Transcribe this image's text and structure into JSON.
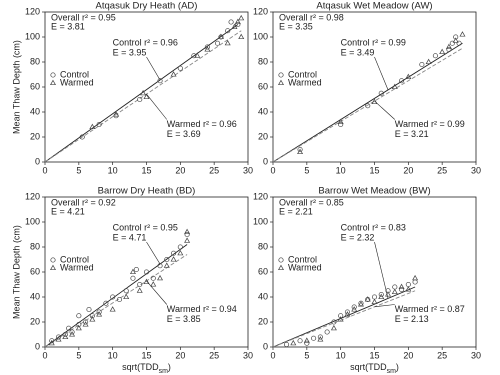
{
  "chart_data": [
    {
      "type": "scatter",
      "title": "Atqasuk Dry Heath (AD)",
      "ylabel": "Mean Thaw Depth (cm)",
      "xlim": [
        0,
        30
      ],
      "ylim": [
        0,
        120
      ],
      "xticks": [
        0,
        5,
        10,
        15,
        20,
        25,
        30
      ],
      "yticks": [
        0,
        20,
        40,
        60,
        80,
        100,
        120
      ],
      "series": [
        {
          "name": "Control",
          "marker": "circle",
          "color": "#444444",
          "x": [
            5.5,
            8,
            10.5,
            14,
            17,
            20,
            22,
            24,
            25.5,
            26,
            27,
            27.5,
            28.5
          ],
          "values": [
            20,
            30,
            37,
            50,
            65,
            75,
            85,
            92,
            95,
            100,
            105,
            112,
            110
          ]
        },
        {
          "name": "Warmed",
          "marker": "triangle",
          "color": "#444444",
          "x": [
            7,
            10.5,
            14.5,
            15,
            19,
            22.5,
            24,
            26,
            27,
            28,
            28.5,
            29,
            29
          ],
          "values": [
            28,
            38,
            55,
            52,
            70,
            85,
            90,
            100,
            95,
            108,
            112,
            115,
            100
          ]
        }
      ],
      "lines": [
        {
          "color": "#222222",
          "dashed": false,
          "x": [
            0,
            28.5
          ],
          "values": [
            0,
            110
          ]
        },
        {
          "color": "#888888",
          "dashed": true,
          "x": [
            0,
            29
          ],
          "values": [
            0,
            105
          ]
        }
      ],
      "annotations": [
        "Overall r² = 0.95",
        "E = 3.81",
        "Control r² = 0.96",
        "E = 3.95",
        "Warmed r² = 0.96",
        "E = 3.69"
      ]
    },
    {
      "type": "scatter",
      "title": "Atqasuk Wet Meadow (AW)",
      "xlim": [
        0,
        30
      ],
      "ylim": [
        0,
        120
      ],
      "xticks": [
        0,
        5,
        10,
        15,
        20,
        25,
        30
      ],
      "yticks": [
        0,
        20,
        40,
        60,
        80,
        100,
        120
      ],
      "series": [
        {
          "name": "Control",
          "marker": "circle",
          "color": "#444444",
          "x": [
            4,
            10,
            14,
            16,
            19,
            22,
            24,
            26,
            26.5,
            27,
            27.5
          ],
          "values": [
            10,
            30,
            45,
            55,
            65,
            78,
            85,
            90,
            95,
            100,
            95
          ]
        },
        {
          "name": "Warmed",
          "marker": "triangle",
          "color": "#444444",
          "x": [
            4,
            10,
            15,
            18,
            20,
            23,
            25,
            26,
            27,
            28
          ],
          "values": [
            8,
            32,
            48,
            60,
            68,
            80,
            88,
            92,
            97,
            102
          ]
        }
      ],
      "lines": [
        {
          "color": "#222222",
          "dashed": false,
          "x": [
            0,
            28
          ],
          "values": [
            0,
            95
          ]
        },
        {
          "color": "#888888",
          "dashed": true,
          "x": [
            0,
            28
          ],
          "values": [
            0,
            91
          ]
        }
      ],
      "annotations": [
        "Overall r² = 0.98",
        "E = 3.35",
        "Control r² = 0.99",
        "E = 3.49",
        "Warmed r² = 0.99",
        "E = 3.21"
      ]
    },
    {
      "type": "scatter",
      "title": "Barrow Dry Heath (BD)",
      "ylabel": "Mean Thaw Depth (cm)",
      "xlabel_main": "sqrt(TDD",
      "xlabel_sub": "sm",
      "xlabel_end": ")",
      "xlim": [
        0,
        30
      ],
      "ylim": [
        0,
        120
      ],
      "xticks": [
        0,
        5,
        10,
        15,
        20,
        25,
        30
      ],
      "yticks": [
        0,
        20,
        40,
        60,
        80,
        100,
        120
      ],
      "series": [
        {
          "name": "Control",
          "marker": "circle",
          "color": "#444444",
          "x": [
            1,
            2,
            3,
            3.5,
            4,
            5,
            5,
            6,
            6.5,
            7,
            8,
            9,
            10,
            11,
            12,
            13,
            13.5,
            14,
            15,
            16,
            17,
            18,
            19,
            20,
            21
          ],
          "values": [
            5,
            8,
            10,
            15,
            12,
            18,
            25,
            20,
            30,
            25,
            28,
            35,
            40,
            38,
            45,
            55,
            62,
            50,
            60,
            55,
            65,
            70,
            75,
            80,
            90
          ]
        },
        {
          "name": "Warmed",
          "marker": "triangle",
          "color": "#444444",
          "x": [
            1,
            2,
            3,
            4,
            5,
            6,
            7,
            8,
            10,
            12,
            13,
            14,
            15,
            16,
            17,
            18,
            19,
            20,
            21,
            21
          ],
          "values": [
            3,
            6,
            8,
            10,
            15,
            18,
            22,
            26,
            30,
            40,
            60,
            45,
            52,
            50,
            55,
            65,
            70,
            75,
            85,
            92
          ]
        }
      ],
      "lines": [
        {
          "color": "#222222",
          "dashed": false,
          "x": [
            0,
            21
          ],
          "values": [
            0,
            82
          ]
        },
        {
          "color": "#888888",
          "dashed": true,
          "x": [
            0,
            21
          ],
          "values": [
            0,
            74
          ]
        }
      ],
      "annotations": [
        "Overall r² = 0.92",
        "E = 4.21",
        "Control r² = 0.95",
        "E = 4.71",
        "Warmed r² = 0.94",
        "E = 3.85"
      ]
    },
    {
      "type": "scatter",
      "title": "Barrow Wet Meadow (BW)",
      "xlabel_main": "sqrt(TDD",
      "xlabel_sub": "sm",
      "xlabel_end": ")",
      "xlim": [
        0,
        30
      ],
      "ylim": [
        0,
        120
      ],
      "xticks": [
        0,
        5,
        10,
        15,
        20,
        25,
        30
      ],
      "yticks": [
        0,
        20,
        40,
        60,
        80,
        100,
        120
      ],
      "series": [
        {
          "name": "Control",
          "marker": "circle",
          "color": "#444444",
          "x": [
            2,
            4,
            5,
            6,
            7,
            8,
            9,
            10,
            11,
            12,
            13,
            14,
            15,
            16,
            17,
            18,
            19,
            20,
            21
          ],
          "values": [
            2,
            5,
            3,
            7,
            8,
            12,
            20,
            25,
            28,
            32,
            35,
            38,
            40,
            42,
            45,
            48,
            46,
            50,
            52
          ]
        },
        {
          "name": "Warmed",
          "marker": "triangle",
          "color": "#444444",
          "x": [
            3,
            5,
            7,
            9,
            10,
            11,
            12,
            13,
            14,
            15,
            16,
            17,
            18,
            19,
            20,
            21
          ],
          "values": [
            3,
            5,
            6,
            15,
            22,
            26,
            30,
            34,
            38,
            36,
            40,
            42,
            44,
            48,
            46,
            55
          ]
        }
      ],
      "lines": [
        {
          "color": "#222222",
          "dashed": false,
          "x": [
            0,
            21
          ],
          "values": [
            0,
            48
          ]
        },
        {
          "color": "#888888",
          "dashed": true,
          "x": [
            0,
            21
          ],
          "values": [
            0,
            45
          ]
        }
      ],
      "annotations": [
        "Overall r² = 0.85",
        "E = 2.21",
        "Control r² = 0.83",
        "E = 2.32",
        "Warmed r² = 0.87",
        "E = 2.13"
      ]
    }
  ]
}
